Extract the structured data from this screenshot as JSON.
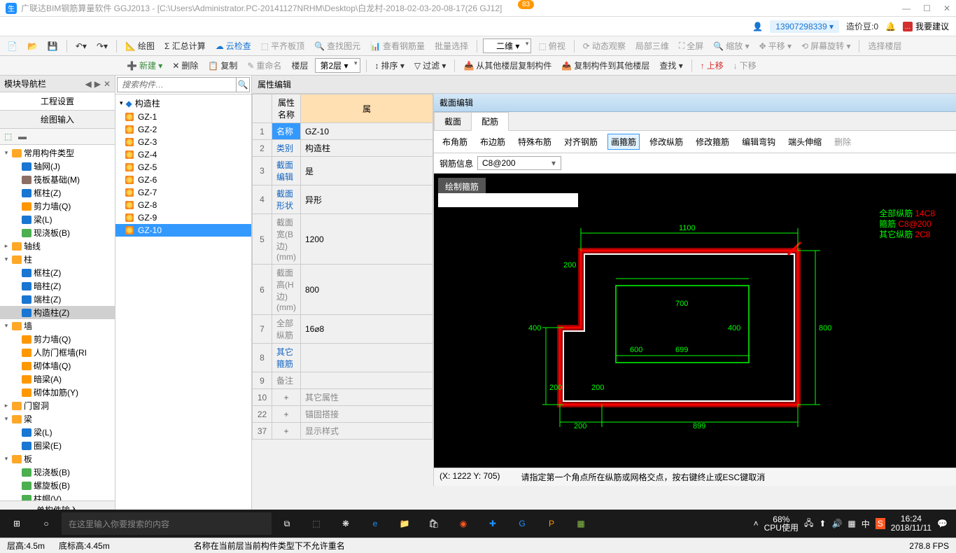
{
  "titlebar": {
    "title": "广联达BIM钢筋算量软件 GGJ2013 - [C:\\Users\\Administrator.PC-20141127NRHM\\Desktop\\白龙村-2018-02-03-20-08-17(26          GJ12]",
    "badge": "83"
  },
  "topinfo": {
    "user": "13907298339 ▾",
    "beans": "造价豆:0",
    "suggest": "我要建议"
  },
  "toolbar1": {
    "draw": "绘图",
    "sum": "Σ 汇总计算",
    "cloud": "云检查",
    "flat": "平齐板顶",
    "find": "查找图元",
    "viewsteel": "查看钢筋量",
    "batch": "批量选择",
    "dim2d": "二维 ▾",
    "topview": "俯视",
    "dynob": "动态观察",
    "local3d": "局部三维",
    "full": "全屏",
    "zoom": "缩放 ▾",
    "pan": "平移 ▾",
    "rotate": "屏幕旋转 ▾",
    "selfloor": "选择楼层"
  },
  "toolbar2": {
    "new": "新建 ▾",
    "del": "删除",
    "copy": "复制",
    "rename": "重命名",
    "floor": "楼层",
    "floorval": "第2层 ▾",
    "sort": "排序 ▾",
    "filter": "过滤 ▾",
    "copyfrom": "从其他楼层复制构件",
    "copyto": "复制构件到其他楼层",
    "search": "查找 ▾",
    "up": "上移",
    "down": "下移"
  },
  "leftpanel": {
    "title": "模块导航栏",
    "proj": "工程设置",
    "draw": "绘图输入",
    "tree": [
      {
        "l": 1,
        "t": "▾",
        "i": "fold",
        "n": "常用构件类型"
      },
      {
        "l": 2,
        "i": "grid",
        "n": "轴网(J)"
      },
      {
        "l": 2,
        "i": "raft",
        "n": "筏板基础(M)"
      },
      {
        "l": 2,
        "i": "col",
        "n": "框柱(Z)"
      },
      {
        "l": 2,
        "i": "wall",
        "n": "剪力墙(Q)"
      },
      {
        "l": 2,
        "i": "beam",
        "n": "梁(L)"
      },
      {
        "l": 2,
        "i": "slab",
        "n": "现浇板(B)"
      },
      {
        "l": 1,
        "t": "▸",
        "i": "fold",
        "n": "轴线"
      },
      {
        "l": 1,
        "t": "▾",
        "i": "fold",
        "n": "柱"
      },
      {
        "l": 2,
        "i": "col",
        "n": "框柱(Z)"
      },
      {
        "l": 2,
        "i": "col",
        "n": "暗柱(Z)"
      },
      {
        "l": 2,
        "i": "col",
        "n": "端柱(Z)"
      },
      {
        "l": 2,
        "i": "col",
        "n": "构造柱(Z)",
        "sel": true
      },
      {
        "l": 1,
        "t": "▾",
        "i": "fold",
        "n": "墙"
      },
      {
        "l": 2,
        "i": "wall",
        "n": "剪力墙(Q)"
      },
      {
        "l": 2,
        "i": "wall",
        "n": "人防门框墙(RI"
      },
      {
        "l": 2,
        "i": "wall",
        "n": "砌体墙(Q)"
      },
      {
        "l": 2,
        "i": "wall",
        "n": "暗梁(A)"
      },
      {
        "l": 2,
        "i": "wall",
        "n": "砌体加筋(Y)"
      },
      {
        "l": 1,
        "t": "▸",
        "i": "fold",
        "n": "门窗洞"
      },
      {
        "l": 1,
        "t": "▾",
        "i": "fold",
        "n": "梁"
      },
      {
        "l": 2,
        "i": "beam",
        "n": "梁(L)"
      },
      {
        "l": 2,
        "i": "beam",
        "n": "圈梁(E)"
      },
      {
        "l": 1,
        "t": "▾",
        "i": "fold",
        "n": "板"
      },
      {
        "l": 2,
        "i": "slab",
        "n": "现浇板(B)"
      },
      {
        "l": 2,
        "i": "slab",
        "n": "螺旋板(B)"
      },
      {
        "l": 2,
        "i": "slab",
        "n": "柱帽(V)"
      },
      {
        "l": 2,
        "i": "slab",
        "n": "板洞(N)"
      },
      {
        "l": 2,
        "i": "slab",
        "n": "板受力筋(S)"
      }
    ],
    "single": "单构件输入",
    "report": "报表预览"
  },
  "gzlist": {
    "root": "构造柱",
    "items": [
      "GZ-1",
      "GZ-2",
      "GZ-3",
      "GZ-4",
      "GZ-5",
      "GZ-6",
      "GZ-7",
      "GZ-8",
      "GZ-9",
      "GZ-10"
    ],
    "selected": "GZ-10"
  },
  "search_placeholder": "搜索构件…",
  "prop": {
    "title": "属性编辑",
    "cols": [
      "属性名称",
      "属"
    ],
    "rows": [
      {
        "n": "1",
        "p": "名称",
        "v": "GZ-10",
        "sel": true
      },
      {
        "n": "2",
        "p": "类别",
        "v": "构造柱"
      },
      {
        "n": "3",
        "p": "截面编辑",
        "v": "是"
      },
      {
        "n": "4",
        "p": "截面形状",
        "v": "异形"
      },
      {
        "n": "5",
        "p": "截面宽(B边)(mm)",
        "v": "1200",
        "g": true
      },
      {
        "n": "6",
        "p": "截面高(H边)(mm)",
        "v": "800",
        "g": true
      },
      {
        "n": "7",
        "p": "全部纵筋",
        "v": "16⌀8",
        "g": true
      },
      {
        "n": "8",
        "p": "其它箍筋",
        "v": ""
      },
      {
        "n": "9",
        "p": "备注",
        "v": "",
        "g": true
      },
      {
        "n": "10",
        "p": "其它属性",
        "v": "",
        "exp": "+",
        "g": true
      },
      {
        "n": "22",
        "p": "锚固搭接",
        "v": "",
        "exp": "+",
        "g": true
      },
      {
        "n": "37",
        "p": "显示样式",
        "v": "",
        "exp": "+",
        "g": true
      }
    ]
  },
  "section": {
    "title": "截面编辑",
    "tabs": [
      "截面",
      "配筋"
    ],
    "active_tab": 1,
    "tools": [
      "布角筋",
      "布边筋",
      "特殊布筋",
      "对齐钢筋",
      "画箍筋",
      "修改纵筋",
      "修改箍筋",
      "编辑弯钩",
      "端头伸缩",
      "删除"
    ],
    "active_tool": 4,
    "input_label": "钢筋信息",
    "input_val": "C8@200",
    "overlay": "绘制箍筋",
    "info": {
      "l1": "全部纵筋",
      "v1": "14C8",
      "l2": "箍筋",
      "v2": "C8@200",
      "l3": "其它纵筋",
      "v3": "2C8"
    },
    "dims": {
      "d1100": "1100",
      "d800": "800",
      "d700": "700",
      "d400l": "400",
      "d400r": "400",
      "d600": "600",
      "d699": "699",
      "d200a": "200",
      "d200b": "200",
      "d200c": "200",
      "d200d": "200",
      "d899": "899"
    },
    "status_coord": "(X: 1222 Y: 705)",
    "status_hint": "请指定第一个角点所在纵筋或网格交点，按右键终止或ESC键取消"
  },
  "bottomstatus": {
    "h": "层高:4.5m",
    "bh": "底标高:4.45m",
    "msg": "名称在当前层当前构件类型下不允许重名",
    "fps": "278.8 FPS"
  },
  "taskbar": {
    "search": "在这里输入你要搜索的内容",
    "cpu_pct": "68%",
    "cpu_lbl": "CPU使用",
    "time": "16:24",
    "date": "2018/11/11"
  }
}
